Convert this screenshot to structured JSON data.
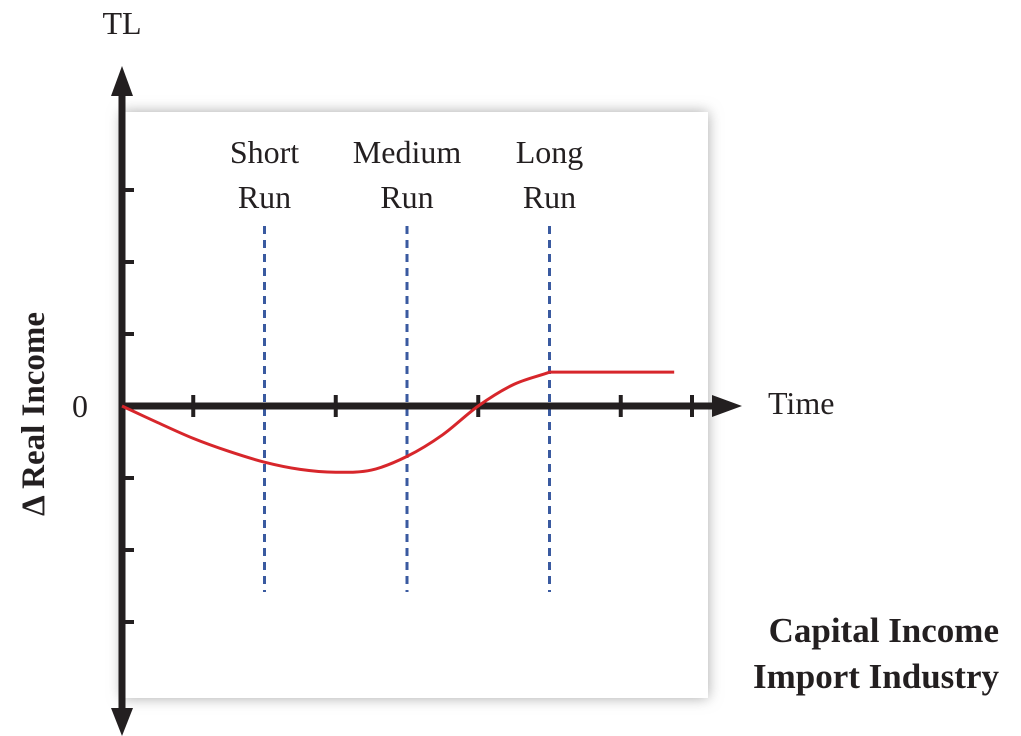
{
  "chart_data": {
    "type": "line",
    "y_axis_top_label": "TL",
    "ylabel": "Δ Real Income",
    "xlabel": "Time",
    "zero_label": "0",
    "caption": [
      "Capital Income",
      "Import Industry"
    ],
    "phases": [
      {
        "label_line1": "Short",
        "label_line2": "Run",
        "x": 2
      },
      {
        "label_line1": "Medium",
        "label_line2": "Run",
        "x": 4
      },
      {
        "label_line1": "Long",
        "label_line2": "Run",
        "x": 6
      }
    ],
    "xlim": [
      0,
      8
    ],
    "ylim": [
      -4,
      4
    ],
    "x_ticks": [
      1,
      3,
      5,
      7,
      8
    ],
    "y_ticks": [
      3,
      2,
      1,
      -1,
      -2,
      -3
    ],
    "series": [
      {
        "color": "#d7262b",
        "x": [
          0,
          0.5,
          1,
          1.5,
          2,
          2.5,
          3,
          3.5,
          4,
          4.5,
          5,
          5.5,
          6,
          6.5,
          7,
          7.5,
          7.75
        ],
        "y": [
          0,
          -0.23,
          -0.45,
          -0.63,
          -0.78,
          -0.88,
          -0.92,
          -0.89,
          -0.7,
          -0.4,
          0,
          0.3,
          0.47,
          0.47,
          0.47,
          0.47,
          0.47
        ]
      }
    ],
    "colors": {
      "axis": "#231f20",
      "panel": "#ffffff",
      "shadow": "#bfbfbf",
      "guide": "#3a5aa0"
    }
  }
}
